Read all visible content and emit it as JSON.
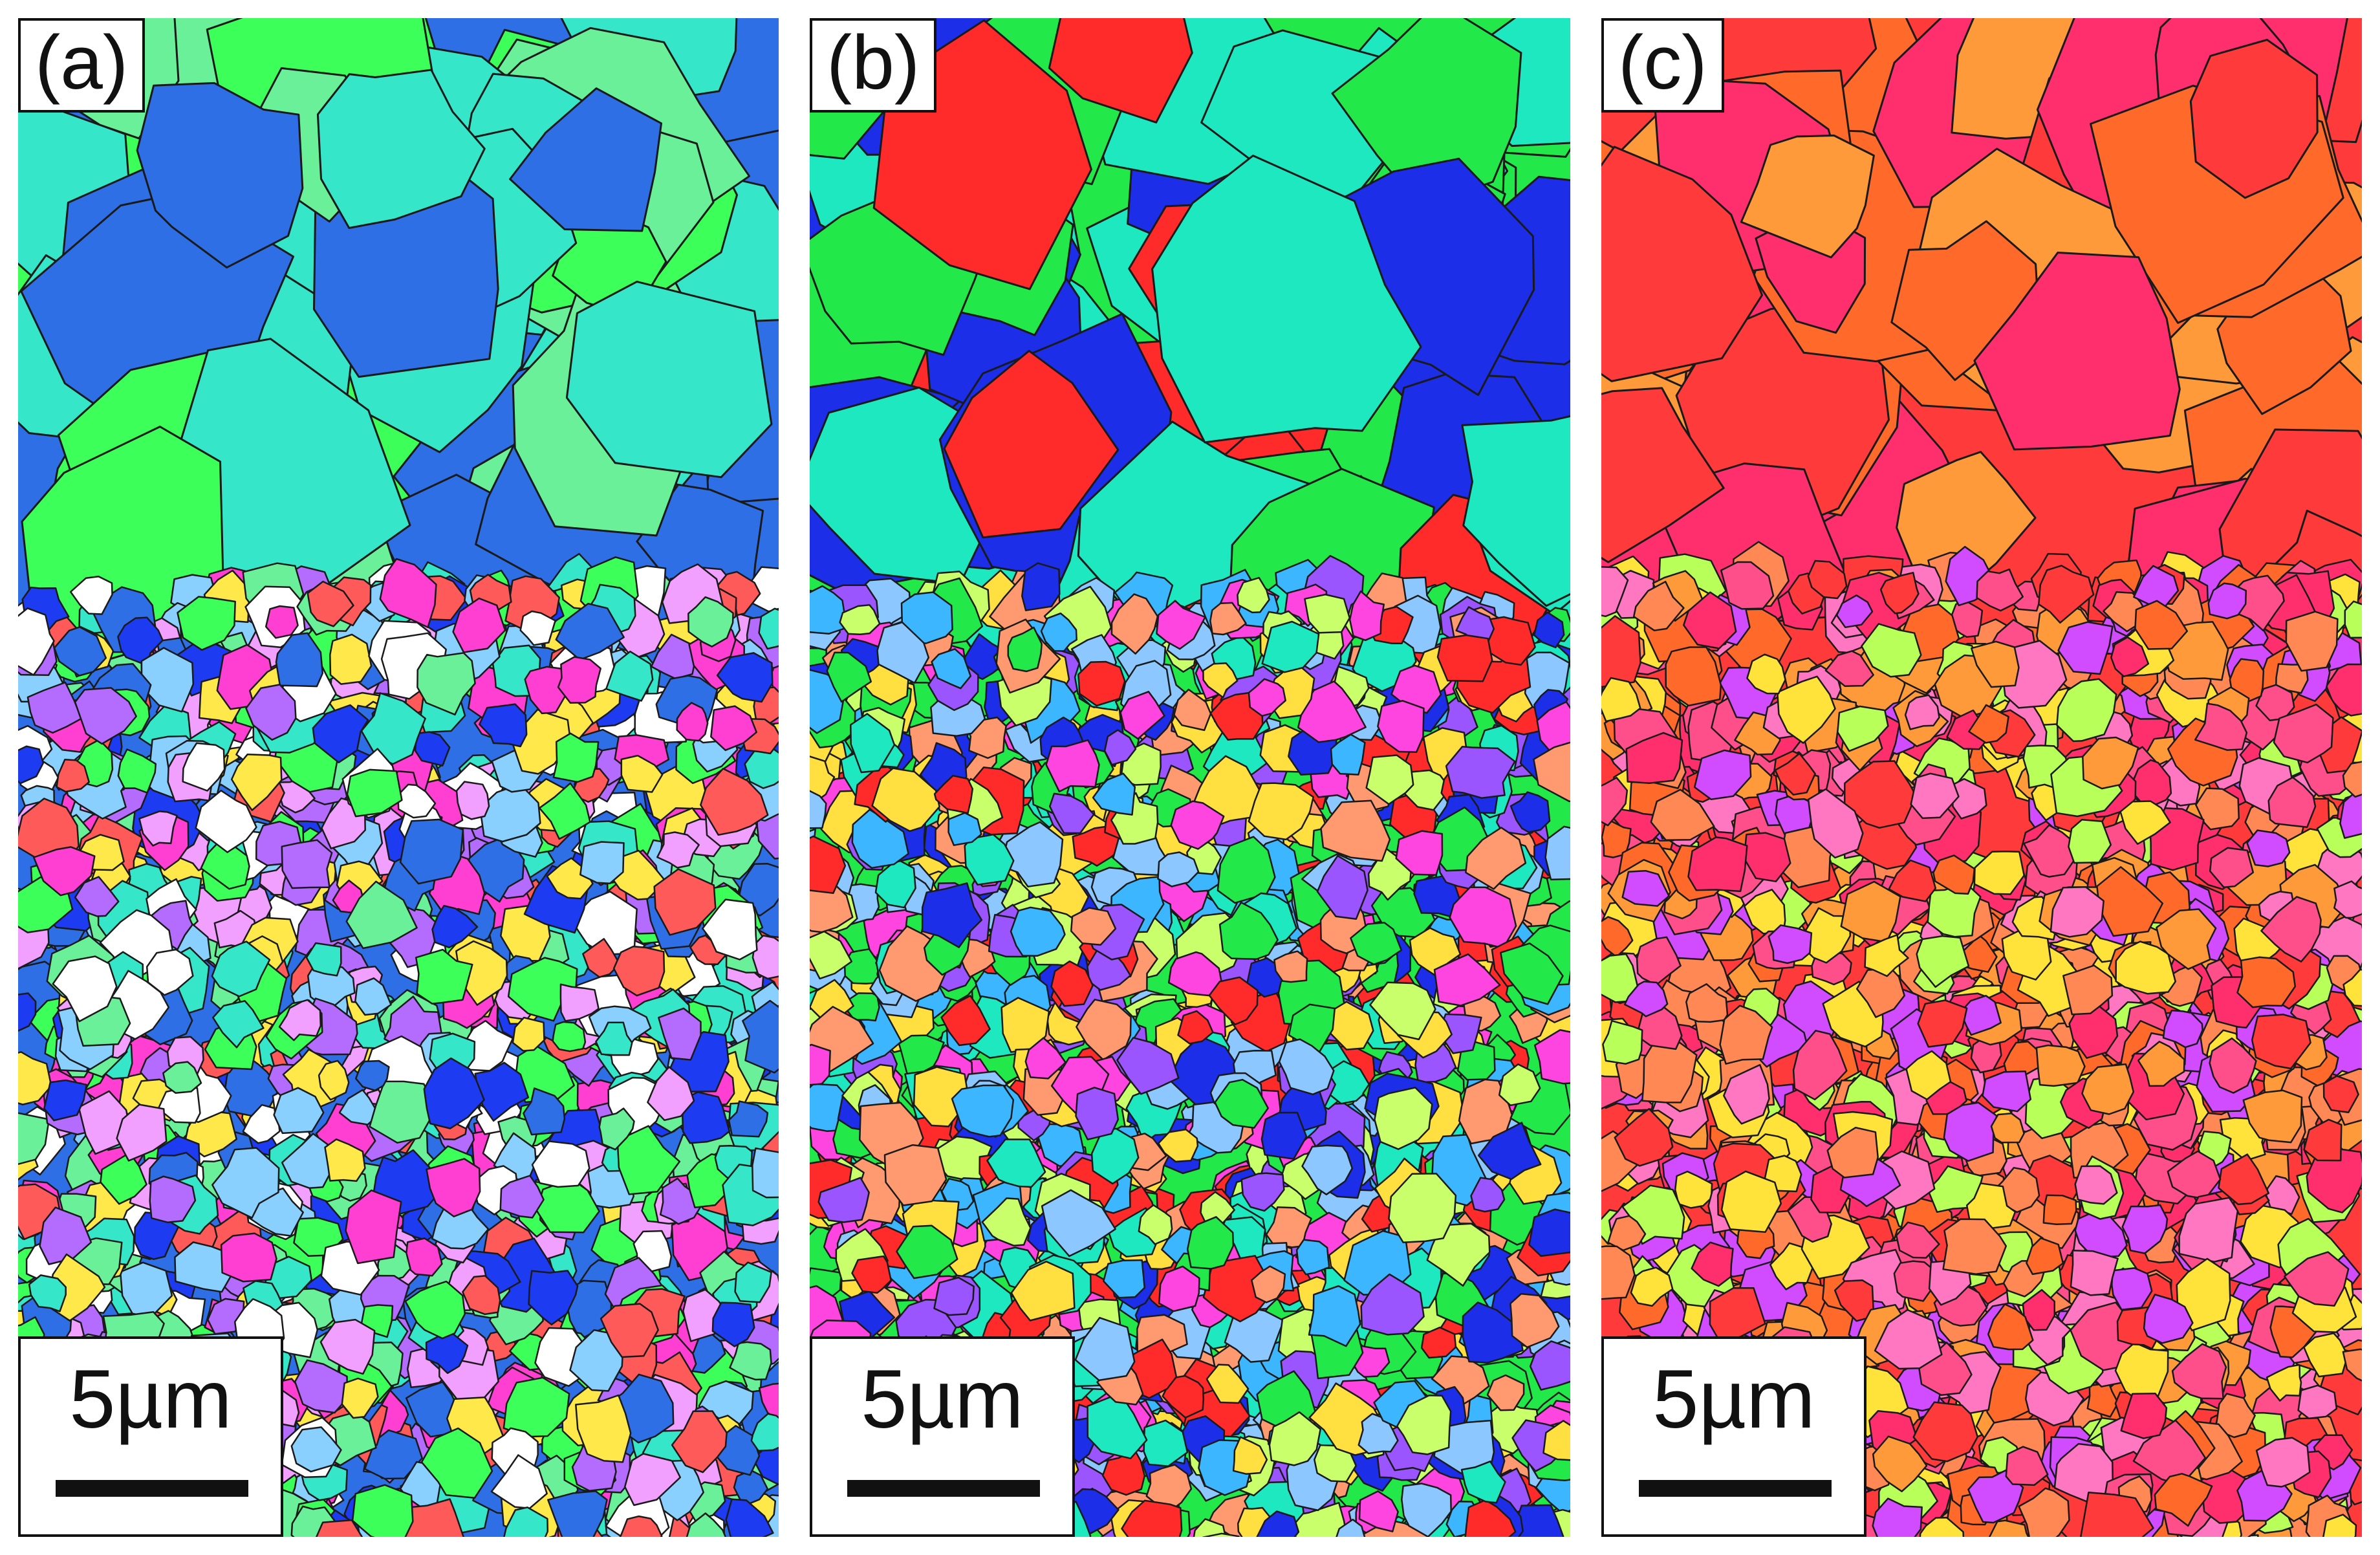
{
  "panels": [
    {
      "label": "(a)",
      "scale_text": "5µm",
      "palette": [
        "#2f6fe6",
        "#3cff5a",
        "#36e6c8",
        "#6bf09a",
        "#1d3bf0",
        "#ff3fd2",
        "#ffe94a",
        "#ff5a5a",
        "#b46cff",
        "#8ad0ff",
        "#f2a0ff",
        "#ffffff"
      ]
    },
    {
      "label": "(b)",
      "scale_text": "5µm",
      "palette": [
        "#22e84a",
        "#1de8c0",
        "#1c2ee8",
        "#ff2a2a",
        "#ff45e0",
        "#ffe040",
        "#8cc8ff",
        "#9a55ff",
        "#ff9a70",
        "#3cb6ff",
        "#c8ff6a"
      ]
    },
    {
      "label": "(c)",
      "scale_text": "5µm",
      "palette": [
        "#ff3a3a",
        "#ff6a2a",
        "#ff2f6e",
        "#ff9a3a",
        "#ffe23a",
        "#d14cff",
        "#ff77c0",
        "#b8ff5a",
        "#ff4f8a",
        "#ff8855"
      ]
    }
  ]
}
